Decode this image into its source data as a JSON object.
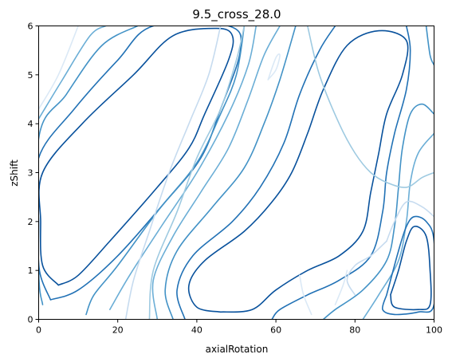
{
  "chart_data": {
    "type": "contour",
    "title": "9.5_cross_28.0",
    "xlabel": "axialRotation",
    "ylabel": "zShift",
    "xlim": [
      0,
      100
    ],
    "ylim": [
      0,
      6
    ],
    "xticks": [
      "0",
      "20",
      "40",
      "60",
      "80",
      "100"
    ],
    "yticks": [
      "0",
      "1",
      "2",
      "3",
      "4",
      "5",
      "6"
    ],
    "grid": false,
    "colormap": "Blues",
    "level_colors": [
      "#dbe9f6",
      "#c6dbef",
      "#9ecae1",
      "#6baed6",
      "#4292c6",
      "#2171b5",
      "#08519c"
    ],
    "contours": [
      {
        "level": 7,
        "points": [
          [
            7,
            1.4
          ],
          [
            3,
            1.6
          ],
          [
            2,
            2.3
          ],
          [
            3,
            2.8
          ],
          [
            14,
            3.7
          ],
          [
            28,
            4.8
          ],
          [
            38,
            5.45
          ],
          [
            42,
            5.7
          ],
          [
            45,
            5.7
          ],
          [
            46,
            5.6
          ],
          [
            40,
            4.6
          ],
          [
            36,
            3.8
          ],
          [
            28,
            2.9
          ],
          [
            18,
            2.1
          ],
          [
            10,
            1.5
          ],
          [
            7,
            1.4
          ]
        ]
      },
      {
        "level": 6,
        "points": [
          [
            5,
            0.7
          ],
          [
            1,
            1.1
          ],
          [
            0.5,
            2.0
          ],
          [
            1,
            3.0
          ],
          [
            11,
            4.0
          ],
          [
            24,
            5.0
          ],
          [
            34,
            5.8
          ],
          [
            45,
            5.95
          ],
          [
            49,
            5.8
          ],
          [
            48,
            5.3
          ],
          [
            42,
            4.2
          ],
          [
            38,
            3.5
          ],
          [
            30,
            2.7
          ],
          [
            18,
            1.6
          ],
          [
            10,
            0.9
          ],
          [
            5,
            0.7
          ]
        ]
      },
      {
        "level": 5,
        "points": [
          [
            3,
            0.4
          ],
          [
            0.2,
            1.0
          ],
          [
            0,
            2.0
          ],
          [
            0,
            3.3
          ],
          [
            9,
            4.3
          ],
          [
            20,
            5.3
          ],
          [
            29,
            6.0
          ],
          [
            48,
            6.0
          ],
          [
            51,
            5.5
          ],
          [
            46,
            4.3
          ],
          [
            41,
            3.3
          ],
          [
            32,
            2.4
          ],
          [
            20,
            1.3
          ],
          [
            10,
            0.6
          ],
          [
            3,
            0.4
          ]
        ]
      },
      {
        "level": 4,
        "points": [
          [
            1,
            0.3
          ],
          [
            0,
            1.0
          ],
          [
            0,
            3.7
          ],
          [
            7,
            4.6
          ],
          [
            16,
            5.6
          ],
          [
            25,
            6.0
          ]
        ]
      },
      {
        "level": 4,
        "points": [
          [
            52,
            6.0
          ],
          [
            50,
            5.0
          ],
          [
            46,
            4.2
          ],
          [
            40,
            3.2
          ],
          [
            30,
            2.2
          ],
          [
            20,
            1.1
          ],
          [
            14,
            0.5
          ],
          [
            12,
            0.1
          ]
        ]
      },
      {
        "level": 3,
        "points": [
          [
            0,
            4.1
          ],
          [
            6,
            4.9
          ],
          [
            13,
            5.8
          ],
          [
            17,
            6.0
          ]
        ]
      },
      {
        "level": 3,
        "points": [
          [
            55,
            6.0
          ],
          [
            53,
            5.2
          ],
          [
            48,
            4.2
          ],
          [
            40,
            3.0
          ],
          [
            31,
            1.9
          ],
          [
            23,
            0.9
          ],
          [
            18,
            0.2
          ]
        ]
      },
      {
        "level": 7,
        "points": [
          [
            47,
            0.35
          ],
          [
            43,
            0.5
          ],
          [
            42,
            0.8
          ],
          [
            47,
            1.1
          ],
          [
            55,
            1.6
          ],
          [
            62,
            2.2
          ],
          [
            67,
            2.8
          ],
          [
            70,
            3.4
          ],
          [
            73,
            4.2
          ],
          [
            77,
            4.9
          ],
          [
            82,
            5.5
          ],
          [
            87,
            5.65
          ],
          [
            90,
            5.55
          ],
          [
            90,
            5.3
          ],
          [
            87,
            4.5
          ],
          [
            83,
            3.8
          ],
          [
            80,
            3.1
          ],
          [
            77,
            2.3
          ],
          [
            72,
            1.7
          ],
          [
            64,
            1.3
          ],
          [
            56,
            0.9
          ],
          [
            52,
            0.5
          ],
          [
            47,
            0.35
          ]
        ]
      },
      {
        "level": 6,
        "points": [
          [
            46,
            0.15
          ],
          [
            40,
            0.25
          ],
          [
            38,
            0.7
          ],
          [
            42,
            1.2
          ],
          [
            52,
            1.8
          ],
          [
            59,
            2.4
          ],
          [
            64,
            3.0
          ],
          [
            68,
            3.8
          ],
          [
            72,
            4.7
          ],
          [
            78,
            5.6
          ],
          [
            86,
            5.9
          ],
          [
            93,
            5.7
          ],
          [
            92,
            5.0
          ],
          [
            88,
            4.2
          ],
          [
            86,
            3.4
          ],
          [
            84,
            2.6
          ],
          [
            82,
            1.8
          ],
          [
            76,
            1.3
          ],
          [
            68,
            1.0
          ],
          [
            60,
            0.6
          ],
          [
            54,
            0.2
          ],
          [
            46,
            0.15
          ]
        ]
      },
      {
        "level": 5,
        "points": [
          [
            37,
            0
          ],
          [
            35,
            0.6
          ],
          [
            39,
            1.3
          ],
          [
            49,
            2.0
          ],
          [
            56,
            2.7
          ],
          [
            62,
            3.6
          ],
          [
            66,
            4.6
          ],
          [
            71,
            5.5
          ],
          [
            75,
            6.0
          ]
        ]
      },
      {
        "level": 5,
        "points": [
          [
            93,
            6.0
          ],
          [
            94,
            5.5
          ],
          [
            93,
            4.7
          ],
          [
            90,
            3.8
          ],
          [
            88,
            3.0
          ],
          [
            87,
            2.2
          ],
          [
            84,
            1.3
          ],
          [
            76,
            0.8
          ],
          [
            68,
            0.5
          ],
          [
            61,
            0.2
          ],
          [
            59,
            0
          ]
        ]
      },
      {
        "level": 4,
        "points": [
          [
            34,
            0
          ],
          [
            32,
            0.6
          ],
          [
            35,
            1.4
          ],
          [
            44,
            2.3
          ],
          [
            52,
            3.1
          ],
          [
            57,
            4.0
          ],
          [
            61,
            4.9
          ],
          [
            65,
            6.0
          ]
        ]
      },
      {
        "level": 4,
        "points": [
          [
            98,
            6.0
          ],
          [
            99,
            5.4
          ],
          [
            100,
            5.2
          ]
        ]
      },
      {
        "level": 4,
        "points": [
          [
            100,
            4.2
          ],
          [
            97,
            4.4
          ],
          [
            94,
            4.2
          ],
          [
            92,
            3.5
          ],
          [
            91,
            2.7
          ],
          [
            90,
            1.9
          ],
          [
            88,
            1.2
          ],
          [
            82,
            0.6
          ],
          [
            75,
            0.2
          ],
          [
            72,
            0
          ]
        ]
      },
      {
        "level": 3,
        "points": [
          [
            30,
            0
          ],
          [
            29,
            0.8
          ],
          [
            34,
            1.7
          ],
          [
            41,
            2.6
          ],
          [
            48,
            3.5
          ],
          [
            53,
            4.5
          ],
          [
            57,
            5.4
          ],
          [
            61,
            6.0
          ]
        ]
      },
      {
        "level": 3,
        "points": [
          [
            100,
            3.8
          ],
          [
            96,
            3.4
          ],
          [
            94,
            2.8
          ],
          [
            93,
            2.0
          ],
          [
            91,
            1.2
          ],
          [
            86,
            0.5
          ],
          [
            82,
            0
          ]
        ]
      },
      {
        "level": 2,
        "points": [
          [
            28,
            0
          ],
          [
            29,
            1.0
          ],
          [
            35,
            2.2
          ],
          [
            40,
            3.3
          ],
          [
            46,
            4.3
          ],
          [
            50,
            5.3
          ],
          [
            52,
            6.0
          ]
        ]
      },
      {
        "level": 2,
        "points": [
          [
            68,
            6.0
          ],
          [
            71,
            5.0
          ],
          [
            76,
            4.0
          ],
          [
            80,
            3.4
          ],
          [
            84,
            3.0
          ],
          [
            88,
            2.8
          ],
          [
            93,
            2.7
          ],
          [
            97,
            2.9
          ],
          [
            100,
            3.0
          ]
        ]
      },
      {
        "level": 1,
        "points": [
          [
            22,
            0
          ],
          [
            24,
            0.8
          ],
          [
            28,
            1.8
          ],
          [
            33,
            3.0
          ],
          [
            38,
            4.0
          ],
          [
            43,
            5.0
          ],
          [
            46,
            6.0
          ]
        ]
      },
      {
        "level": 1,
        "points": [
          [
            88,
            1.6
          ],
          [
            84,
            1.3
          ],
          [
            80,
            1.1
          ],
          [
            78,
            0.8
          ],
          [
            80,
            0.5
          ]
        ]
      },
      {
        "level": 1,
        "points": [
          [
            100,
            2.1
          ],
          [
            97,
            2.3
          ],
          [
            93,
            2.4
          ],
          [
            90,
            2.0
          ],
          [
            88,
            1.6
          ]
        ]
      },
      {
        "level": 0,
        "points": [
          [
            0,
            4.3
          ],
          [
            5,
            5.0
          ],
          [
            10,
            6.0
          ]
        ]
      },
      {
        "level": 0,
        "points": [
          [
            58,
            4.9
          ],
          [
            60,
            5.1
          ],
          [
            61,
            5.4
          ],
          [
            60,
            5.35
          ],
          [
            58,
            4.9
          ]
        ]
      },
      {
        "level": 0,
        "points": [
          [
            69,
            0.1
          ],
          [
            67,
            0.5
          ],
          [
            66,
            0.9
          ]
        ]
      },
      {
        "level": 0,
        "points": [
          [
            75,
            0.3
          ],
          [
            77,
            0.7
          ],
          [
            78,
            1.0
          ]
        ]
      },
      {
        "level": 5,
        "points": [
          [
            88,
            0.5
          ],
          [
            87,
            0.2
          ],
          [
            90,
            0.1
          ],
          [
            96,
            0.15
          ],
          [
            100,
            0.3
          ],
          [
            100,
            1.6
          ],
          [
            98,
            2.0
          ],
          [
            95,
            2.1
          ],
          [
            93,
            1.9
          ],
          [
            91,
            1.4
          ],
          [
            88,
            0.5
          ]
        ]
      },
      {
        "level": 6,
        "points": [
          [
            89,
            0.5
          ],
          [
            90,
            0.25
          ],
          [
            96,
            0.2
          ],
          [
            99,
            0.3
          ],
          [
            99,
            1.0
          ],
          [
            98,
            1.7
          ],
          [
            95,
            1.9
          ],
          [
            93,
            1.6
          ],
          [
            91,
            1.0
          ],
          [
            89,
            0.5
          ]
        ]
      },
      {
        "level": 7,
        "points": [
          [
            91,
            0.5
          ],
          [
            92,
            0.3
          ],
          [
            97,
            0.3
          ],
          [
            98,
            0.6
          ],
          [
            97,
            0.9
          ],
          [
            95.5,
            1.2
          ],
          [
            94.5,
            1.1
          ],
          [
            93,
            0.7
          ],
          [
            91,
            0.5
          ]
        ]
      }
    ]
  }
}
